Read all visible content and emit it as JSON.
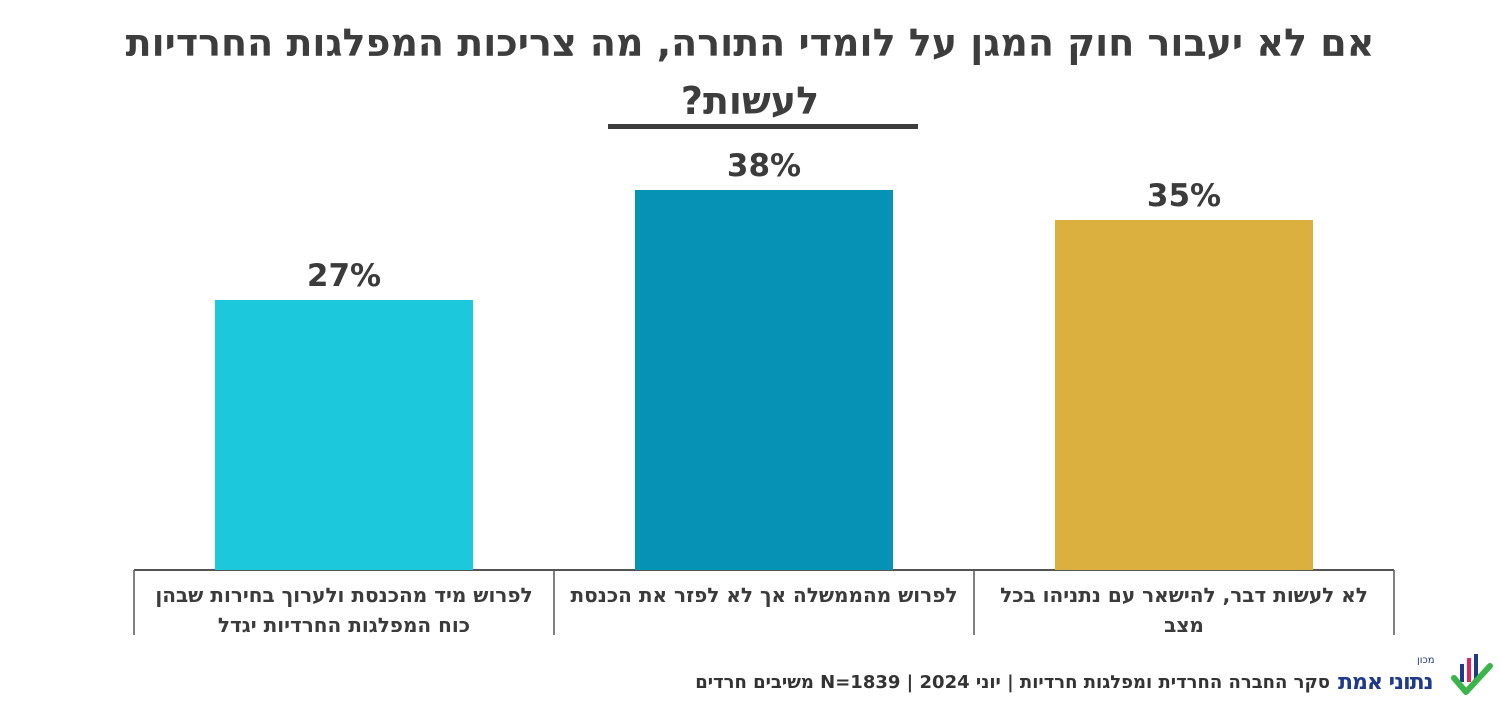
{
  "chart_data": {
    "type": "bar",
    "title": "אם לא יעבור חוק המגן על לומדי התורה, מה צריכות המפלגות החרדיות לעשות?",
    "categories": [
      "לפרוש מיד מהכנסת ולערוך בחירות שבהן כוח המפלגות החרדיות יגדל",
      "לפרוש מהממשלה אך לא לפזר את הכנסת",
      "לא לעשות דבר, להישאר עם נתניהו בכל מצב"
    ],
    "values": [
      27,
      38,
      35
    ],
    "value_labels": [
      "27%",
      "38%",
      "35%"
    ],
    "colors": [
      "#1cc8dc",
      "#0592b5",
      "#dcb03e"
    ],
    "ylim": [
      0,
      40
    ],
    "grid": false,
    "legend": "none"
  },
  "footer": {
    "source": "סקר החברה החרדית ומפלגות חרדיות | יוני 2024 | N=1839 משיבים חרדים"
  },
  "logo": {
    "prefix": "מכון",
    "name": "נתוני אמת"
  }
}
